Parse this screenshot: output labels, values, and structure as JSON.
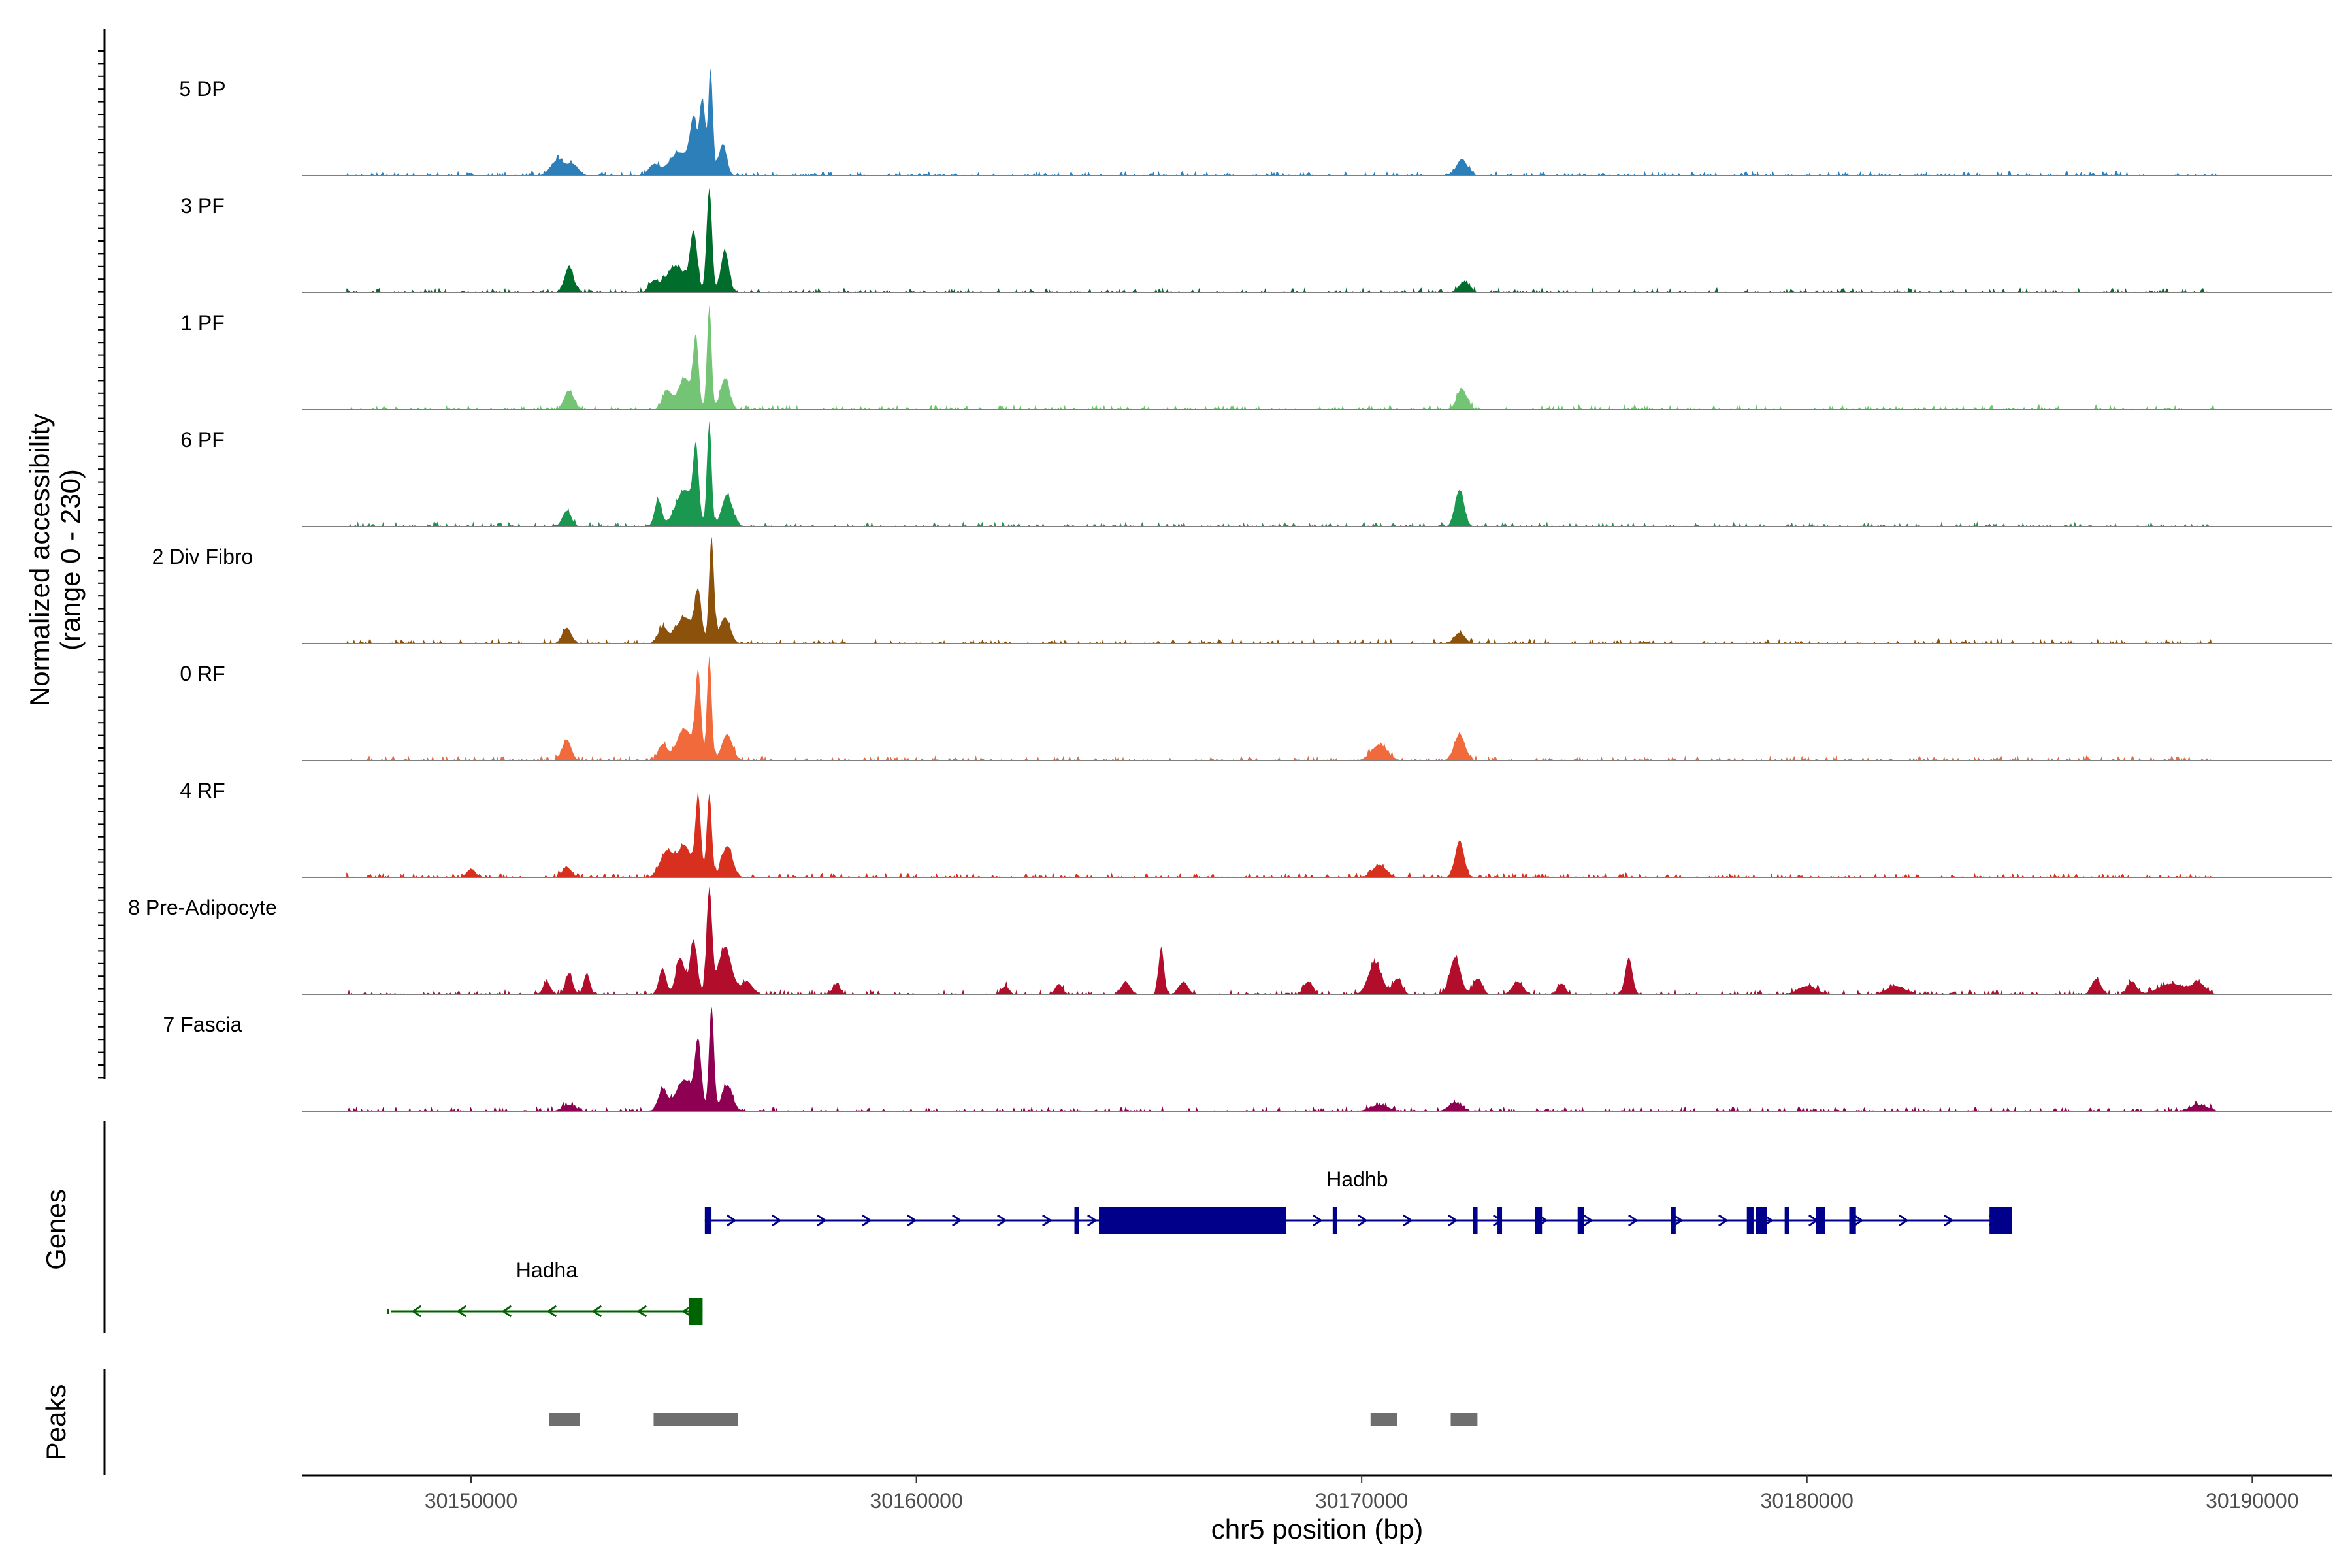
{
  "chart_data": {
    "type": "area",
    "title": "",
    "xlabel": "chr5 position (bp)",
    "ylabel": [
      "Normalized accessibility",
      "(range 0 - 230)"
    ],
    "y_range": [
      0,
      230
    ],
    "xlim": [
      30146200,
      30191800
    ],
    "x_ticks": [
      30150000,
      30160000,
      30170000,
      30180000,
      30190000
    ],
    "x_tick_labels": [
      "30150000",
      "30160000",
      "30170000",
      "30180000",
      "30190000"
    ],
    "panels": {
      "genes": "Genes",
      "peaks": "Peaks"
    },
    "tracks": [
      {
        "name": "5 DP",
        "color": "#2c7fb8",
        "peaks": [
          [
            30151950,
            0.15,
            160
          ],
          [
            30152300,
            0.1,
            120
          ],
          [
            30154100,
            0.1,
            120
          ],
          [
            30154700,
            0.22,
            250
          ],
          [
            30155000,
            0.45,
            80
          ],
          [
            30155200,
            0.7,
            60
          ],
          [
            30155380,
            1.0,
            50
          ],
          [
            30155650,
            0.3,
            90
          ],
          [
            30172250,
            0.16,
            120
          ]
        ]
      },
      {
        "name": "3 PF",
        "color": "#006d2c",
        "peaks": [
          [
            30152200,
            0.25,
            100
          ],
          [
            30154100,
            0.1,
            100
          ],
          [
            30154600,
            0.25,
            220
          ],
          [
            30155000,
            0.55,
            80
          ],
          [
            30155350,
            1.0,
            60
          ],
          [
            30155700,
            0.4,
            90
          ],
          [
            30172300,
            0.1,
            120
          ]
        ]
      },
      {
        "name": "1 PF",
        "color": "#74c476",
        "peaks": [
          [
            30152200,
            0.18,
            110
          ],
          [
            30154400,
            0.18,
            100
          ],
          [
            30154800,
            0.3,
            150
          ],
          [
            30155050,
            0.65,
            60
          ],
          [
            30155350,
            1.0,
            50
          ],
          [
            30155700,
            0.3,
            100
          ],
          [
            30172250,
            0.2,
            110
          ]
        ]
      },
      {
        "name": "6 PF",
        "color": "#1a9850",
        "peaks": [
          [
            30152150,
            0.15,
            100
          ],
          [
            30154200,
            0.25,
            80
          ],
          [
            30154800,
            0.35,
            200
          ],
          [
            30155050,
            0.65,
            60
          ],
          [
            30155350,
            1.0,
            50
          ],
          [
            30155750,
            0.3,
            120
          ],
          [
            30172200,
            0.35,
            100
          ]
        ]
      },
      {
        "name": "2 Div Fibro",
        "color": "#8c510a",
        "peaks": [
          [
            30152150,
            0.15,
            100
          ],
          [
            30154300,
            0.15,
            100
          ],
          [
            30154800,
            0.25,
            200
          ],
          [
            30155100,
            0.45,
            70
          ],
          [
            30155400,
            1.0,
            55
          ],
          [
            30155700,
            0.25,
            120
          ],
          [
            30172200,
            0.1,
            120
          ]
        ]
      },
      {
        "name": "0 RF",
        "color": "#f16a3c",
        "peaks": [
          [
            30152150,
            0.2,
            100
          ],
          [
            30154300,
            0.15,
            100
          ],
          [
            30154800,
            0.3,
            180
          ],
          [
            30155100,
            0.8,
            60
          ],
          [
            30155350,
            1.0,
            50
          ],
          [
            30155750,
            0.25,
            120
          ],
          [
            30170400,
            0.15,
            180
          ],
          [
            30172200,
            0.25,
            120
          ]
        ]
      },
      {
        "name": "4 RF",
        "color": "#d7301f",
        "peaks": [
          [
            30150000,
            0.08,
            100
          ],
          [
            30152150,
            0.1,
            100
          ],
          [
            30154400,
            0.25,
            150
          ],
          [
            30154800,
            0.3,
            150
          ],
          [
            30155100,
            0.75,
            60
          ],
          [
            30155350,
            0.8,
            55
          ],
          [
            30155750,
            0.3,
            120
          ],
          [
            30170400,
            0.12,
            150
          ],
          [
            30172200,
            0.35,
            100
          ]
        ]
      },
      {
        "name": "8 Pre-Adipocyte",
        "color": "#b30d2c",
        "peaks": [
          [
            30151700,
            0.12,
            80
          ],
          [
            30152200,
            0.2,
            80
          ],
          [
            30152600,
            0.2,
            70
          ],
          [
            30154300,
            0.25,
            80
          ],
          [
            30154700,
            0.35,
            100
          ],
          [
            30155000,
            0.5,
            80
          ],
          [
            30155350,
            1.0,
            60
          ],
          [
            30155700,
            0.45,
            150
          ],
          [
            30156200,
            0.12,
            120
          ],
          [
            30158200,
            0.1,
            80
          ],
          [
            30162000,
            0.08,
            80
          ],
          [
            30163200,
            0.1,
            80
          ],
          [
            30164700,
            0.12,
            100
          ],
          [
            30165500,
            0.45,
            60
          ],
          [
            30166000,
            0.12,
            100
          ],
          [
            30168800,
            0.12,
            100
          ],
          [
            30170300,
            0.3,
            150
          ],
          [
            30170800,
            0.15,
            100
          ],
          [
            30172100,
            0.35,
            120
          ],
          [
            30172600,
            0.15,
            100
          ],
          [
            30173500,
            0.12,
            120
          ],
          [
            30174500,
            0.1,
            80
          ],
          [
            30176000,
            0.35,
            80
          ],
          [
            30180000,
            0.08,
            200
          ],
          [
            30182000,
            0.08,
            200
          ],
          [
            30186500,
            0.15,
            100
          ],
          [
            30187300,
            0.12,
            100
          ],
          [
            30188200,
            0.1,
            300
          ],
          [
            30188800,
            0.1,
            150
          ]
        ]
      },
      {
        "name": "7 Fascia",
        "color": "#8e0152",
        "peaks": [
          [
            30152200,
            0.06,
            150
          ],
          [
            30154300,
            0.2,
            100
          ],
          [
            30154800,
            0.3,
            200
          ],
          [
            30155100,
            0.6,
            70
          ],
          [
            30155400,
            1.0,
            55
          ],
          [
            30155750,
            0.25,
            120
          ],
          [
            30170400,
            0.06,
            200
          ],
          [
            30172100,
            0.08,
            150
          ],
          [
            30188800,
            0.06,
            200
          ]
        ]
      }
    ],
    "genes": [
      {
        "name": "Hadhb",
        "strand": "+",
        "color": "#00008b",
        "start": 30155250,
        "end": 30184600,
        "label_pos": 30169900,
        "exons": [
          [
            30155250,
            30155400
          ],
          [
            30163550,
            30163650
          ],
          [
            30164100,
            30168300
          ],
          [
            30169350,
            30169450
          ],
          [
            30172500,
            30172600
          ],
          [
            30173050,
            30173150
          ],
          [
            30173900,
            30174050
          ],
          [
            30174850,
            30175000
          ],
          [
            30176950,
            30177050
          ],
          [
            30178650,
            30178800
          ],
          [
            30178850,
            30179100
          ],
          [
            30179500,
            30179600
          ],
          [
            30180200,
            30180400
          ],
          [
            30180950,
            30181100
          ],
          [
            30184100,
            30184600
          ]
        ]
      },
      {
        "name": "Hadha",
        "strand": "-",
        "color": "#006400",
        "start": 30148200,
        "end": 30155200,
        "label_pos": 30151700,
        "exons": [
          [
            30154900,
            30155200
          ]
        ]
      }
    ],
    "peaks": [
      [
        30151750,
        30152450
      ],
      [
        30154100,
        30156000
      ],
      [
        30170200,
        30170800
      ],
      [
        30172000,
        30172600
      ]
    ]
  }
}
